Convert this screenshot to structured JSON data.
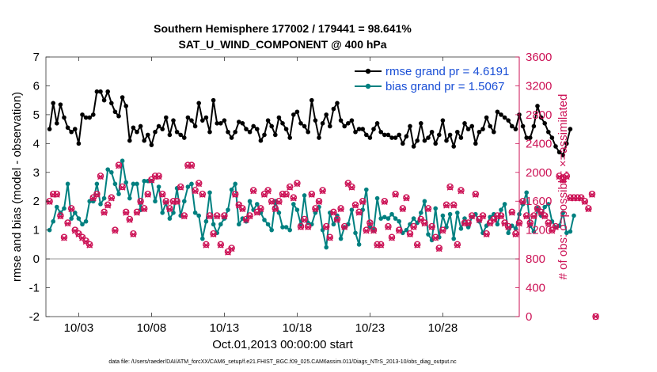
{
  "chart_data": {
    "type": "line",
    "title": "Southern Hemisphere 177002 / 179441 = 98.641%",
    "subtitle": "SAT_U_WIND_COMPONENT @ 400 hPa",
    "xlabel": "Oct.01,2013 00:00:00 start",
    "ylabel": "rmse and bias (model - observation)",
    "y2label": "# of obs: o=possible; ×=assimilated",
    "footnote": "data file: /Users/raeder/DAI/ATM_forcXX/CAM6_setup/f.e21.FHIST_BGC.f09_025.CAM6assim.011/Diags_NTrS_2013-10/obs_diag_output.nc",
    "xlim": [
      0.75,
      33.25
    ],
    "ylim": [
      -2,
      7
    ],
    "y2lim": [
      0,
      3600
    ],
    "yticks": [
      -2,
      -1,
      0,
      1,
      2,
      3,
      4,
      5,
      6,
      7
    ],
    "y2ticks": [
      0,
      400,
      800,
      1200,
      1600,
      2000,
      2400,
      2800,
      3200,
      3600
    ],
    "xticks": [
      {
        "value": 3,
        "label": "10/03"
      },
      {
        "value": 8,
        "label": "10/08"
      },
      {
        "value": 13,
        "label": "10/13"
      },
      {
        "value": 18,
        "label": "10/18"
      },
      {
        "value": 23,
        "label": "10/23"
      },
      {
        "value": 28,
        "label": "10/28"
      }
    ],
    "zero_line": 0,
    "legend": {
      "position": "top-right",
      "entries": [
        {
          "name": "rmse grand pr = 4.6191"
        },
        {
          "name": "bias grand pr = 1.5067"
        }
      ]
    },
    "series": [
      {
        "name": "rmse",
        "color": "#000000",
        "values": [
          4.5,
          5.4,
          4.7,
          5.35,
          4.9,
          4.55,
          4.4,
          4.5,
          4.0,
          5.0,
          4.9,
          4.9,
          5.0,
          5.8,
          5.8,
          5.5,
          5.8,
          5.4,
          5.1,
          4.95,
          5.6,
          5.3,
          4.1,
          4.55,
          4.4,
          4.6,
          4.1,
          4.3,
          3.95,
          4.4,
          4.6,
          4.5,
          4.9,
          4.3,
          4.8,
          4.4,
          4.3,
          4.2,
          4.9,
          4.8,
          4.6,
          5.4,
          4.8,
          4.9,
          4.4,
          5.5,
          4.7,
          4.7,
          4.8,
          4.4,
          4.2,
          4.4,
          4.75,
          4.7,
          4.5,
          4.4,
          4.6,
          4.5,
          4.1,
          4.3,
          4.8,
          4.6,
          4.3,
          4.9,
          4.7,
          4.5,
          4.2,
          5.0,
          5.1,
          4.7,
          4.6,
          4.4,
          5.5,
          4.8,
          4.2,
          4.7,
          5.0,
          4.6,
          5.2,
          5.4,
          4.8,
          4.6,
          4.7,
          4.8,
          4.4,
          4.5,
          4.5,
          4.3,
          4.2,
          4.5,
          4.7,
          4.4,
          4.3,
          4.3,
          4.2,
          4.2,
          4.3,
          4.0,
          4.25,
          4.6,
          3.9,
          4.1,
          4.7,
          4.1,
          4.2,
          4.4,
          4.0,
          4.3,
          4.8,
          4.1,
          4.3,
          3.9,
          4.4,
          4.2,
          4.7,
          4.5,
          4.6,
          4.0,
          4.4,
          4.5,
          4.9,
          4.6,
          4.4,
          5.1,
          5.0,
          4.9,
          4.8,
          4.6,
          4.5,
          5.0,
          4.6,
          4.2,
          4.2,
          4.6,
          5.3,
          4.9,
          4.7,
          4.4,
          4.2,
          3.9,
          3.7,
          3.6,
          4.0,
          4.5
        ]
      },
      {
        "name": "bias",
        "color": "#008080",
        "values": [
          1.0,
          1.3,
          1.8,
          1.6,
          1.75,
          2.6,
          1.4,
          1.6,
          1.4,
          1.2,
          1.3,
          2.0,
          2.0,
          2.6,
          1.9,
          2.1,
          3.1,
          3.0,
          2.6,
          2.25,
          3.4,
          2.65,
          2.1,
          2.6,
          2.6,
          1.7,
          2.7,
          2.7,
          2.7,
          2.0,
          2.5,
          1.6,
          1.95,
          1.4,
          1.6,
          2.45,
          1.5,
          2.0,
          2.5,
          2.6,
          1.6,
          1.5,
          0.7,
          1.3,
          2.3,
          1.2,
          0.9,
          1.2,
          1.4,
          1.7,
          2.4,
          2.6,
          1.2,
          1.4,
          1.3,
          2.0,
          1.7,
          1.9,
          1.6,
          1.35,
          1.2,
          1.0,
          2.0,
          1.6,
          1.1,
          1.1,
          1.0,
          1.9,
          1.7,
          1.2,
          2.2,
          1.25,
          1.2,
          1.6,
          1.8,
          1.0,
          0.4,
          1.6,
          1.2,
          1.5,
          0.7,
          1.1,
          1.2,
          1.7,
          0.9,
          0.5,
          1.7,
          2.4,
          1.1,
          1.0,
          2.1,
          1.4,
          1.45,
          1.4,
          1.55,
          1.4,
          1.3,
          0.9,
          1.0,
          1.2,
          1.4,
          1.25,
          1.6,
          2.0,
          0.85,
          0.65,
          1.75,
          0.75,
          1.5,
          1.1,
          1.55,
          0.7,
          1.6,
          1.05,
          1.4,
          1.1,
          1.45,
          1.55,
          1.3,
          0.9,
          1.15,
          1.45,
          1.55,
          1.2,
          1.7,
          1.9,
          0.9,
          1.15,
          1.05,
          1.55,
          1.9,
          2.3,
          1.15,
          0.95,
          1.75,
          1.5,
          1.8,
          1.9,
          1.3,
          1.1,
          1.15,
          1.6,
          0.9,
          0.95,
          1.5
        ]
      },
      {
        "name": "obs_possible",
        "color": "#cc1155",
        "values": [
          1600,
          1700,
          1700,
          1400,
          1100,
          1300,
          1500,
          1200,
          1150,
          1100,
          1050,
          1000,
          1650,
          1700,
          1950,
          1450,
          1550,
          1650,
          1200,
          2100,
          1800,
          1450,
          1350,
          1150,
          1450,
          1600,
          1500,
          1700,
          1900,
          1950,
          1950,
          1700,
          1600,
          1500,
          1600,
          1600,
          1800,
          1400,
          2100,
          2100,
          1750,
          1850,
          1700,
          1000,
          1400,
          1150,
          1400,
          1000,
          1400,
          900,
          950,
          1700,
          1550,
          1500,
          1350,
          1400,
          1750,
          1450,
          1500,
          1700,
          1750,
          1600,
          1500,
          1600,
          1700,
          1700,
          1800,
          1650,
          1850,
          1250,
          1350,
          1250,
          1700,
          1500,
          1600,
          1750,
          1250,
          1100,
          1450,
          1350,
          1500,
          1250,
          1850,
          1800,
          1550,
          1450,
          1600,
          1200,
          1300,
          1200,
          1000,
          1000,
          1600,
          1250,
          1100,
          1700,
          1200,
          1500,
          1650,
          1150,
          1250,
          1000,
          1350,
          1300,
          1500,
          1250,
          1100,
          950,
          1200,
          1550,
          1800,
          1550,
          1000,
          1750,
          1300,
          1300,
          1400,
          1700,
          1350,
          1400,
          1150,
          1300,
          1350,
          1400,
          1400,
          1300,
          1250,
          1450,
          1150,
          1300,
          1600,
          1400,
          1300,
          1400,
          1500,
          1450,
          1400,
          1300,
          1200,
          1250,
          1950,
          1900,
          1950,
          1650,
          1650,
          1650,
          1650,
          1600,
          1500,
          1700,
          0
        ]
      },
      {
        "name": "obs_assimilated",
        "color": "#cc1155",
        "values": [
          1590,
          1690,
          1690,
          1390,
          1090,
          1290,
          1490,
          1190,
          1140,
          1090,
          1040,
          990,
          1640,
          1690,
          1940,
          1440,
          1540,
          1640,
          1190,
          2090,
          1790,
          1440,
          1340,
          1140,
          1440,
          1590,
          1490,
          1690,
          1890,
          1940,
          1940,
          1690,
          1590,
          1490,
          1590,
          1590,
          1790,
          1390,
          2090,
          2090,
          1740,
          1840,
          1690,
          990,
          1390,
          1140,
          1390,
          990,
          1390,
          890,
          940,
          1690,
          1540,
          1490,
          1340,
          1390,
          1740,
          1440,
          1490,
          1690,
          1740,
          1590,
          1490,
          1590,
          1690,
          1690,
          1790,
          1640,
          1840,
          1240,
          1340,
          1240,
          1690,
          1490,
          1590,
          1740,
          1240,
          1090,
          1440,
          1340,
          1490,
          1240,
          1840,
          1790,
          1540,
          1440,
          1590,
          1190,
          1290,
          1190,
          990,
          990,
          1590,
          1240,
          1090,
          1690,
          1190,
          1490,
          1640,
          1140,
          1240,
          990,
          1340,
          1290,
          1490,
          1240,
          1090,
          940,
          1190,
          1540,
          1790,
          1540,
          990,
          1740,
          1290,
          1290,
          1390,
          1690,
          1340,
          1390,
          1140,
          1290,
          1340,
          1390,
          1390,
          1290,
          1240,
          1440,
          1140,
          1290,
          1590,
          1390,
          1290,
          1390,
          1490,
          1440,
          1390,
          1290,
          1190,
          1240,
          1940,
          1890,
          1940,
          1640,
          1640,
          1640,
          1640,
          1590,
          1490,
          1690,
          0
        ]
      }
    ]
  }
}
